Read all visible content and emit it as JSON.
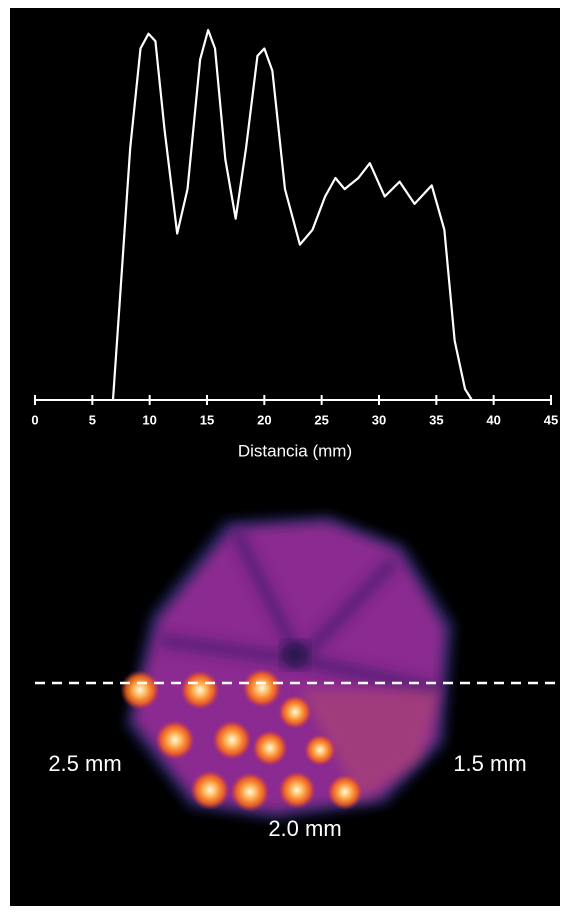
{
  "chart_data": {
    "type": "line",
    "x_label": "Distancia (mm)",
    "x": [
      6.8,
      7.4,
      8.3,
      9.2,
      9.9,
      10.5,
      11.3,
      12.4,
      13.3,
      14.4,
      15.1,
      15.7,
      16.6,
      17.5,
      18.4,
      19.4,
      20.0,
      20.7,
      21.8,
      23.1,
      24.2,
      25.3,
      26.2,
      27.0,
      28.2,
      29.2,
      30.5,
      31.8,
      33.1,
      34.6,
      35.7,
      36.6,
      37.5,
      38.1
    ],
    "series": [
      {
        "color": "#ffffff",
        "values": [
          0,
          27,
          68,
          95,
          99,
          97,
          73,
          45,
          57,
          92,
          100,
          95,
          65,
          49,
          68,
          93,
          95,
          89,
          57,
          42,
          46,
          55,
          60,
          57,
          60,
          64,
          55,
          59,
          53,
          58,
          46,
          16,
          3,
          0
        ]
      }
    ],
    "xlim": [
      0,
      45
    ],
    "xticks": [
      0,
      5,
      10,
      15,
      20,
      25,
      30,
      35,
      40,
      45
    ],
    "ylim": [
      0,
      100
    ]
  },
  "image": {
    "labels": [
      "2.5 mm",
      "1.5 mm",
      "2.0 mm"
    ]
  }
}
